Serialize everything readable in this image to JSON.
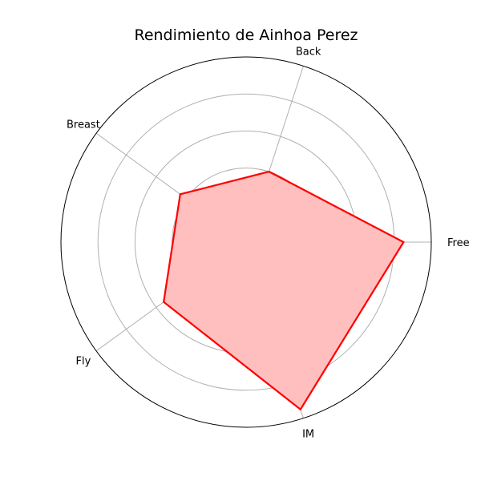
{
  "chart_data": {
    "type": "radar",
    "title": "Rendimiento de Ainhoa Perez",
    "categories": [
      "Free",
      "Back",
      "Breast",
      "Fly",
      "IM"
    ],
    "series": [
      {
        "values": [
          0.85,
          0.4,
          0.44,
          0.55,
          0.95
        ],
        "color": "#ff0000",
        "fill": "#ffbfbf"
      }
    ],
    "rlim": [
      0,
      1
    ],
    "grid": true,
    "rgrid_rings": 5
  }
}
